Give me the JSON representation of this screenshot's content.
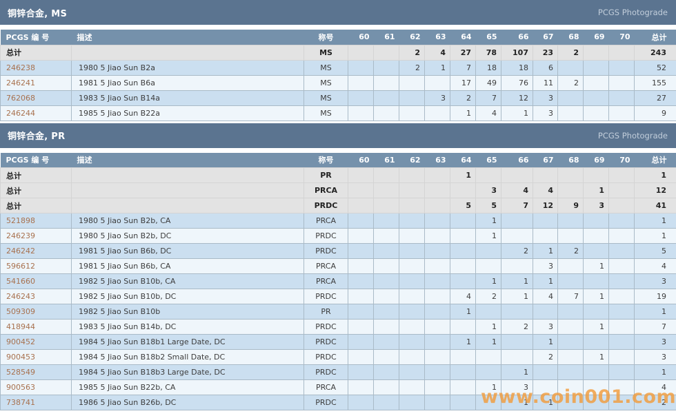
{
  "watermark": "www.coin001.com",
  "colors": {
    "title_bar": "#5b7490",
    "header_row": "#7591ab",
    "brand_text": "#c2cedb",
    "row_blue": "#cbdff0",
    "row_white": "#eff6fb",
    "total_row": "#e3e3e3",
    "grid_line": "#a9bac7",
    "link": "#a8714e",
    "watermark": "#f29d3e"
  },
  "grade_columns": [
    "60",
    "61",
    "62",
    "63",
    "64",
    "65",
    "66",
    "67",
    "68",
    "69",
    "70"
  ],
  "sections": [
    {
      "title": "铜锌合金, MS",
      "brand": "PCGS Photograde",
      "columns": {
        "pcgs": "PCGS 编 号",
        "desc": "描述",
        "grade": "称号",
        "total": "总计"
      },
      "total_rows": [
        {
          "label": "总计",
          "desc": "",
          "grade": "MS",
          "counts": {
            "62": 2,
            "63": 4,
            "64": 27,
            "65": 78,
            "66": 107,
            "67": 23,
            "68": 2
          },
          "total": 243
        }
      ],
      "rows": [
        {
          "pcgs": "246238",
          "desc": "1980 5 Jiao Sun B2a",
          "grade": "MS",
          "counts": {
            "62": 2,
            "63": 1,
            "64": 7,
            "65": 18,
            "66": 18,
            "67": 6
          },
          "total": 52
        },
        {
          "pcgs": "246241",
          "desc": "1981 5 Jiao Sun B6a",
          "grade": "MS",
          "counts": {
            "64": 17,
            "65": 49,
            "66": 76,
            "67": 11,
            "68": 2
          },
          "total": 155
        },
        {
          "pcgs": "762068",
          "desc": "1983 5 Jiao Sun B14a",
          "grade": "MS",
          "counts": {
            "63": 3,
            "64": 2,
            "65": 7,
            "66": 12,
            "67": 3
          },
          "total": 27
        },
        {
          "pcgs": "246244",
          "desc": "1985 5 Jiao Sun B22a",
          "grade": "MS",
          "counts": {
            "64": 1,
            "65": 4,
            "66": 1,
            "67": 3
          },
          "total": 9
        }
      ]
    },
    {
      "title": "铜锌合金, PR",
      "brand": "PCGS Photograde",
      "columns": {
        "pcgs": "PCGS 编 号",
        "desc": "描述",
        "grade": "称号",
        "total": "总计"
      },
      "total_rows": [
        {
          "label": "总计",
          "desc": "",
          "grade": "PR",
          "counts": {
            "64": 1
          },
          "total": 1
        },
        {
          "label": "总计",
          "desc": "",
          "grade": "PRCA",
          "counts": {
            "65": 3,
            "66": 4,
            "67": 4,
            "69": 1
          },
          "total": 12
        },
        {
          "label": "总计",
          "desc": "",
          "grade": "PRDC",
          "counts": {
            "64": 5,
            "65": 5,
            "66": 7,
            "67": 12,
            "68": 9,
            "69": 3
          },
          "total": 41
        }
      ],
      "rows": [
        {
          "pcgs": "521898",
          "desc": "1980 5 Jiao Sun B2b, CA",
          "grade": "PRCA",
          "counts": {
            "65": 1
          },
          "total": 1
        },
        {
          "pcgs": "246239",
          "desc": "1980 5 Jiao Sun B2b, DC",
          "grade": "PRDC",
          "counts": {
            "65": 1
          },
          "total": 1
        },
        {
          "pcgs": "246242",
          "desc": "1981 5 Jiao Sun B6b, DC",
          "grade": "PRDC",
          "counts": {
            "66": 2,
            "67": 1,
            "68": 2
          },
          "total": 5
        },
        {
          "pcgs": "596612",
          "desc": "1981 5 Jiao Sun B6b, CA",
          "grade": "PRCA",
          "counts": {
            "67": 3,
            "69": 1
          },
          "total": 4
        },
        {
          "pcgs": "541660",
          "desc": "1982 5 Jiao Sun B10b, CA",
          "grade": "PRCA",
          "counts": {
            "65": 1,
            "66": 1,
            "67": 1
          },
          "total": 3
        },
        {
          "pcgs": "246243",
          "desc": "1982 5 Jiao Sun B10b, DC",
          "grade": "PRDC",
          "counts": {
            "64": 4,
            "65": 2,
            "66": 1,
            "67": 4,
            "68": 7,
            "69": 1
          },
          "total": 19
        },
        {
          "pcgs": "509309",
          "desc": "1982 5 Jiao Sun B10b",
          "grade": "PR",
          "counts": {
            "64": 1
          },
          "total": 1
        },
        {
          "pcgs": "418944",
          "desc": "1983 5 Jiao Sun B14b, DC",
          "grade": "PRDC",
          "counts": {
            "65": 1,
            "66": 2,
            "67": 3,
            "69": 1
          },
          "total": 7
        },
        {
          "pcgs": "900452",
          "desc": "1984 5 Jiao Sun B18b1 Large Date, DC",
          "grade": "PRDC",
          "counts": {
            "64": 1,
            "65": 1,
            "67": 1
          },
          "total": 3
        },
        {
          "pcgs": "900453",
          "desc": "1984 5 Jiao Sun B18b2 Small Date, DC",
          "grade": "PRDC",
          "counts": {
            "67": 2,
            "69": 1
          },
          "total": 3
        },
        {
          "pcgs": "528549",
          "desc": "1984 5 Jiao Sun B18b3 Large Date, DC",
          "grade": "PRDC",
          "counts": {
            "66": 1
          },
          "total": 1
        },
        {
          "pcgs": "900563",
          "desc": "1985 5 Jiao Sun B22b, CA",
          "grade": "PRCA",
          "counts": {
            "65": 1,
            "66": 3
          },
          "total": 4
        },
        {
          "pcgs": "738741",
          "desc": "1986 5 Jiao Sun B26b, DC",
          "grade": "PRDC",
          "counts": {
            "66": 1,
            "67": 1
          },
          "total": 2
        }
      ]
    }
  ]
}
